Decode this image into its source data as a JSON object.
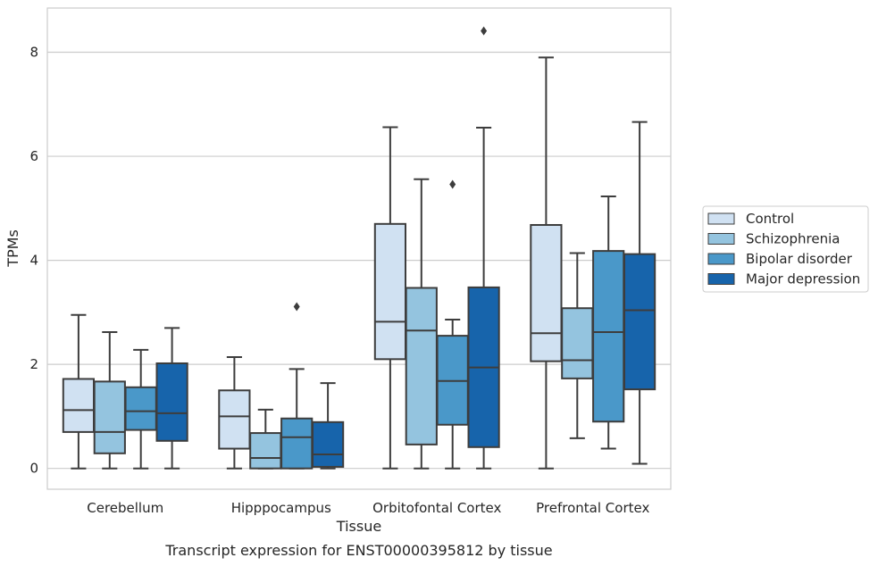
{
  "chart_data": {
    "type": "box",
    "xlabel": "Tissue",
    "ylabel": "TPMs",
    "caption": "Transcript expression for ENST00000395812 by tissue",
    "ylim": [
      -0.4,
      8.85
    ],
    "yticks": [
      0,
      2,
      4,
      6,
      8
    ],
    "grid": "horizontal",
    "legend_position": "right",
    "categories": [
      "Cerebellum",
      "Hipppocampus",
      "Orbitofontal Cortex",
      "Prefrontal Cortex"
    ],
    "series": [
      {
        "name": "Control",
        "color": "#d0e1f2",
        "boxes": [
          {
            "whisker_low": 0,
            "q1": 0.7,
            "median": 1.12,
            "q3": 1.72,
            "whisker_high": 2.95,
            "outliers": []
          },
          {
            "whisker_low": 0,
            "q1": 0.38,
            "median": 1.0,
            "q3": 1.5,
            "whisker_high": 2.14,
            "outliers": []
          },
          {
            "whisker_low": 0,
            "q1": 2.1,
            "median": 2.82,
            "q3": 4.7,
            "whisker_high": 6.56,
            "outliers": []
          },
          {
            "whisker_low": 0,
            "q1": 2.06,
            "median": 2.6,
            "q3": 4.68,
            "whisker_high": 7.9,
            "outliers": []
          }
        ]
      },
      {
        "name": "Schizophrenia",
        "color": "#94c4df",
        "boxes": [
          {
            "whisker_low": 0,
            "q1": 0.29,
            "median": 0.7,
            "q3": 1.67,
            "whisker_high": 2.62,
            "outliers": []
          },
          {
            "whisker_low": 0,
            "q1": 0,
            "median": 0.2,
            "q3": 0.68,
            "whisker_high": 1.13,
            "outliers": []
          },
          {
            "whisker_low": 0,
            "q1": 0.46,
            "median": 2.65,
            "q3": 3.47,
            "whisker_high": 5.56,
            "outliers": []
          },
          {
            "whisker_low": 0.58,
            "q1": 1.73,
            "median": 2.08,
            "q3": 3.08,
            "whisker_high": 4.14,
            "outliers": []
          }
        ]
      },
      {
        "name": "Bipolar disorder",
        "color": "#4a98c9",
        "boxes": [
          {
            "whisker_low": 0,
            "q1": 0.74,
            "median": 1.1,
            "q3": 1.56,
            "whisker_high": 2.28,
            "outliers": []
          },
          {
            "whisker_low": 0,
            "q1": 0,
            "median": 0.6,
            "q3": 0.96,
            "whisker_high": 1.91,
            "outliers": [
              3.11
            ]
          },
          {
            "whisker_low": 0,
            "q1": 0.84,
            "median": 1.68,
            "q3": 2.55,
            "whisker_high": 2.86,
            "outliers": [
              5.46
            ]
          },
          {
            "whisker_low": 0.38,
            "q1": 0.9,
            "median": 2.62,
            "q3": 4.18,
            "whisker_high": 5.23,
            "outliers": []
          }
        ]
      },
      {
        "name": "Major depression",
        "color": "#1764ab",
        "boxes": [
          {
            "whisker_low": 0,
            "q1": 0.53,
            "median": 1.06,
            "q3": 2.02,
            "whisker_high": 2.7,
            "outliers": []
          },
          {
            "whisker_low": 0,
            "q1": 0.03,
            "median": 0.27,
            "q3": 0.89,
            "whisker_high": 1.64,
            "outliers": []
          },
          {
            "whisker_low": 0,
            "q1": 0.41,
            "median": 1.94,
            "q3": 3.48,
            "whisker_high": 6.55,
            "outliers": [
              8.41
            ]
          },
          {
            "whisker_low": 0.09,
            "q1": 1.52,
            "median": 3.04,
            "q3": 4.12,
            "whisker_high": 6.66,
            "outliers": []
          }
        ]
      }
    ]
  }
}
